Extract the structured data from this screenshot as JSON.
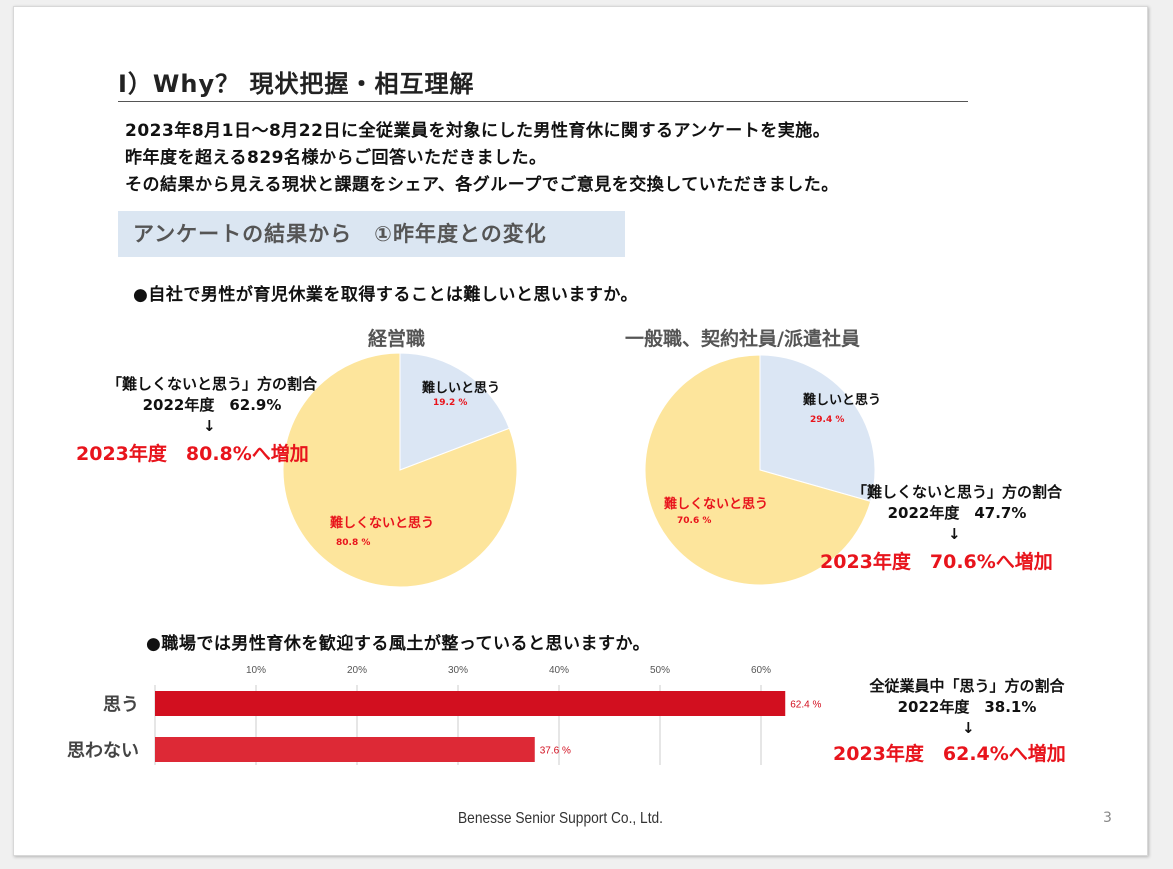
{
  "title": "Ⅰ）Why？ 現状把握・相互理解",
  "intro": [
    "2023年8月1日～8月22日に全従業員を対象にした男性育休に関するアンケートを実施。",
    "昨年度を超える829名様からご回答いただきました。",
    "その結果から見える現状と課題をシェア、各グループでご意見を交換していただきました。"
  ],
  "section_heading": "アンケートの結果から　①昨年度との変化",
  "question1": "●自社で男性が育児休業を取得することは難しいと思いますか。",
  "question2": "●職場では男性育休を歓迎する風土が整っていると思いますか。",
  "notes": {
    "mgmt": {
      "line1": "「難しくないと思う」方の割合",
      "line2": "2022年度　62.9%",
      "arrow": "↓",
      "line3": "2023年度　80.8%へ増加"
    },
    "general": {
      "line1": "「難しくないと思う」方の割合",
      "line2": "2022年度　47.7%",
      "arrow": "↓",
      "line3": "2023年度　70.6%へ増加"
    },
    "bar": {
      "line1": "全従業員中「思う」方の割合",
      "line2": "2022年度　38.1%",
      "arrow": "↓",
      "line3": "2023年度　62.4%へ増加"
    }
  },
  "footer": "Benesse Senior Support Co., Ltd.",
  "page_number": "3",
  "colors": {
    "pie_difficult": "#dbe6f4",
    "pie_not_difficult": "#fde59c",
    "bar_yes": "#d20f1f",
    "bar_no": "#dd2936",
    "highlight_red": "#e8141c"
  },
  "chart_data": [
    {
      "type": "pie",
      "title": "経営職",
      "slices": [
        {
          "label": "難しいと思う",
          "value": 19.2,
          "pct_label": "19.2 %"
        },
        {
          "label": "難しくないと思う",
          "value": 80.8,
          "pct_label": "80.8 %"
        }
      ]
    },
    {
      "type": "pie",
      "title": "一般職、契約社員/派遣社員",
      "slices": [
        {
          "label": "難しいと思う",
          "value": 29.4,
          "pct_label": "29.4 %"
        },
        {
          "label": "難しくないと思う",
          "value": 70.6,
          "pct_label": "70.6 %"
        }
      ]
    },
    {
      "type": "bar",
      "orientation": "horizontal",
      "categories": [
        "思う",
        "思わない"
      ],
      "values": [
        62.4,
        37.6
      ],
      "value_labels": [
        "62.4 %",
        "37.6 %"
      ],
      "xlim": [
        0,
        65
      ],
      "ticks": [
        10,
        20,
        30,
        40,
        50,
        60
      ],
      "tick_labels": [
        "10%",
        "20%",
        "30%",
        "40%",
        "50%",
        "60%"
      ],
      "grid": true
    }
  ]
}
